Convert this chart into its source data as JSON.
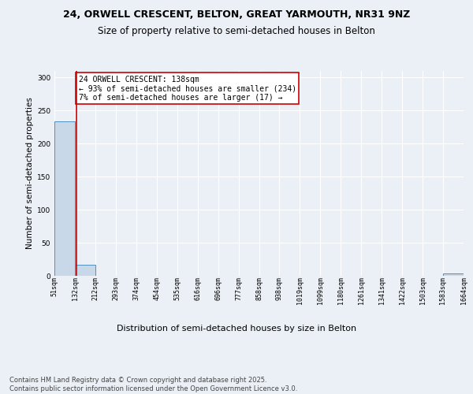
{
  "title1": "24, ORWELL CRESCENT, BELTON, GREAT YARMOUTH, NR31 9NZ",
  "title2": "Size of property relative to semi-detached houses in Belton",
  "xlabel": "Distribution of semi-detached houses by size in Belton",
  "ylabel": "Number of semi-detached properties",
  "bin_edges": [
    51,
    132,
    212,
    293,
    374,
    454,
    535,
    616,
    696,
    777,
    858,
    938,
    1019,
    1099,
    1180,
    1261,
    1341,
    1422,
    1503,
    1583,
    1664
  ],
  "bar_heights": [
    234,
    17,
    0,
    0,
    0,
    0,
    0,
    0,
    0,
    0,
    0,
    0,
    0,
    0,
    0,
    0,
    0,
    0,
    0,
    3
  ],
  "bar_color": "#c8d8e8",
  "bar_edge_color": "#5090c0",
  "property_size": 138,
  "property_line_color": "#cc0000",
  "annotation_text": "24 ORWELL CRESCENT: 138sqm\n← 93% of semi-detached houses are smaller (234)\n7% of semi-detached houses are larger (17) →",
  "annotation_box_color": "#cc0000",
  "ylim": [
    0,
    310
  ],
  "yticks": [
    0,
    50,
    100,
    150,
    200,
    250,
    300
  ],
  "footnote": "Contains HM Land Registry data © Crown copyright and database right 2025.\nContains public sector information licensed under the Open Government Licence v3.0.",
  "bg_color": "#eaf0f6",
  "plot_bg_color": "#eaf0f6",
  "title1_fontsize": 9,
  "title2_fontsize": 8.5,
  "grid_color": "#ffffff",
  "annot_fontsize": 7,
  "tick_fontsize": 6,
  "ylabel_fontsize": 7.5,
  "xlabel_fontsize": 8
}
